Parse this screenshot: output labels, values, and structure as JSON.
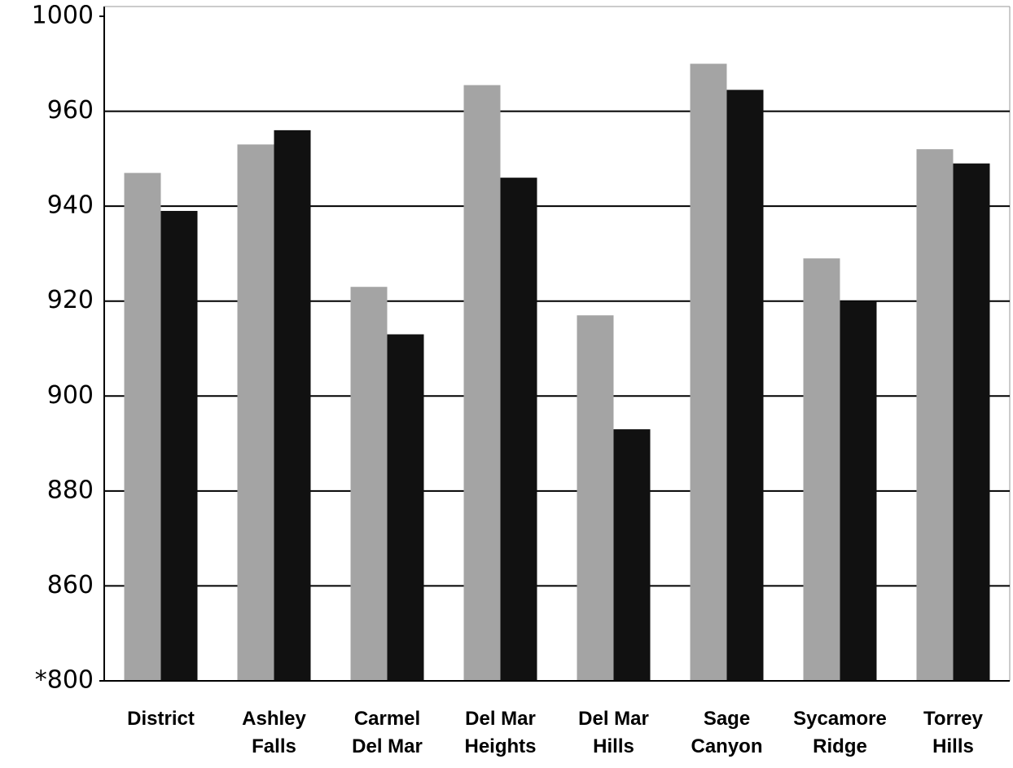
{
  "chart_data": {
    "type": "bar",
    "categories": [
      "District",
      "Ashley\nFalls",
      "Carmel\nDel Mar",
      "Del Mar\nHeights",
      "Del Mar\nHills",
      "Sage\nCanyon",
      "Sycamore\nRidge",
      "Torrey\nHills"
    ],
    "series": [
      {
        "color": "#a4a4a4",
        "values": [
          947,
          953,
          923,
          971,
          917,
          980,
          929,
          952
        ]
      },
      {
        "color": "#111111",
        "values": [
          939,
          956,
          913,
          946,
          893,
          969,
          920,
          949
        ]
      }
    ],
    "ylim": [
      800,
      1000
    ],
    "yticks": [
      {
        "value": 800,
        "label": "*800"
      },
      860,
      880,
      900,
      920,
      940,
      960,
      1000
    ],
    "grid": true
  }
}
